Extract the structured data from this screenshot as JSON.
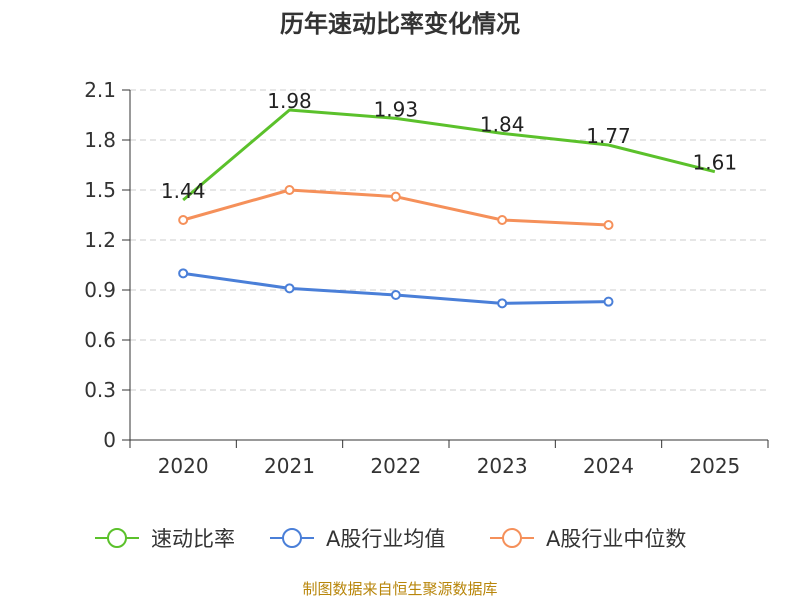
{
  "chart_data": {
    "type": "line",
    "title": "历年速动比率变化情况",
    "categories": [
      "2020",
      "2021",
      "2022",
      "2023",
      "2024",
      "2025"
    ],
    "ylim": [
      0,
      2.1
    ],
    "yticks": [
      "0",
      "0.3",
      "0.6",
      "0.9",
      "1.2",
      "1.5",
      "1.8",
      "2.1"
    ],
    "ytick_values": [
      0,
      0.3,
      0.6,
      0.9,
      1.2,
      1.5,
      1.8,
      2.1
    ],
    "grid": true,
    "legend": "bottom",
    "series": [
      {
        "name": "速动比率",
        "color": "#5bc12b",
        "values": [
          1.44,
          1.98,
          1.93,
          1.84,
          1.77,
          1.61
        ],
        "labels": [
          "1.44",
          "1.98",
          "1.93",
          "1.84",
          "1.77",
          "1.61"
        ],
        "show_markers": false,
        "show_labels": true
      },
      {
        "name": "A股行业均值",
        "color": "#4a7fd8",
        "values": [
          1.0,
          0.91,
          0.87,
          0.82,
          0.83,
          null
        ],
        "show_markers": true,
        "show_labels": false
      },
      {
        "name": "A股行业中位数",
        "color": "#f5905a",
        "values": [
          1.32,
          1.5,
          1.46,
          1.32,
          1.29,
          null
        ],
        "show_markers": true,
        "show_labels": false
      }
    ]
  },
  "source": "制图数据来自恒生聚源数据库"
}
